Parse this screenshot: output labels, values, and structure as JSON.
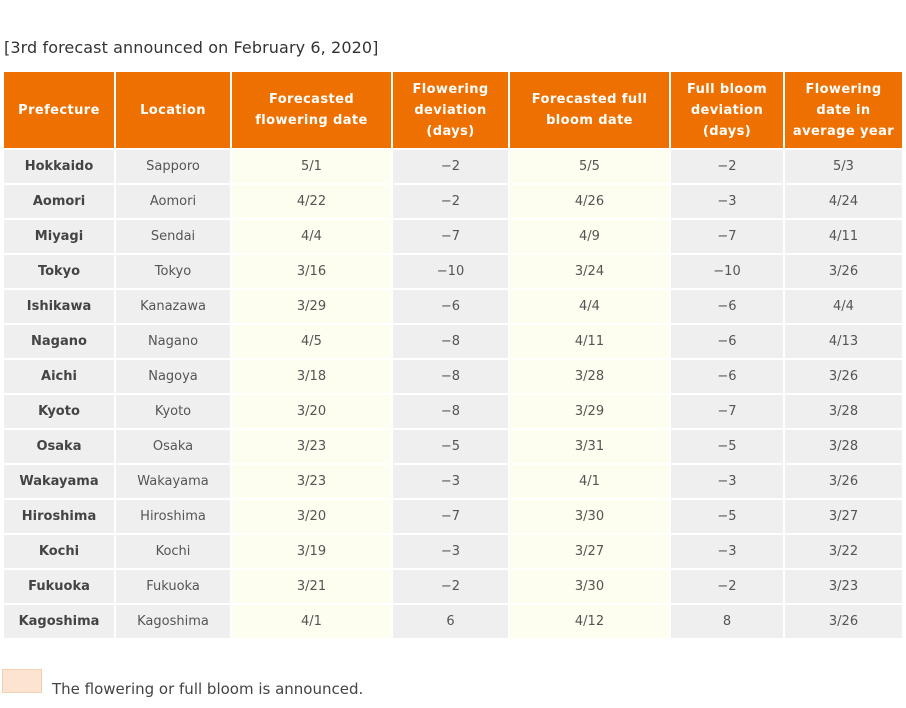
{
  "caption": "[3rd forecast announced on February 6, 2020]",
  "columns": [
    "Prefecture",
    "Location",
    "Forecasted flowering date",
    "Flowering deviation (days)",
    "Forecasted full bloom date",
    "Full bloom deviation (days)",
    "Flowering date in average year"
  ],
  "rows": [
    [
      "Hokkaido",
      "Sapporo",
      "5/1",
      "−2",
      "5/5",
      "−2",
      "5/3"
    ],
    [
      "Aomori",
      "Aomori",
      "4/22",
      "−2",
      "4/26",
      "−3",
      "4/24"
    ],
    [
      "Miyagi",
      "Sendai",
      "4/4",
      "−7",
      "4/9",
      "−7",
      "4/11"
    ],
    [
      "Tokyo",
      "Tokyo",
      "3/16",
      "−10",
      "3/24",
      "−10",
      "3/26"
    ],
    [
      "Ishikawa",
      "Kanazawa",
      "3/29",
      "−6",
      "4/4",
      "−6",
      "4/4"
    ],
    [
      "Nagano",
      "Nagano",
      "4/5",
      "−8",
      "4/11",
      "−6",
      "4/13"
    ],
    [
      "Aichi",
      "Nagoya",
      "3/18",
      "−8",
      "3/28",
      "−6",
      "3/26"
    ],
    [
      "Kyoto",
      "Kyoto",
      "3/20",
      "−8",
      "3/29",
      "−7",
      "3/28"
    ],
    [
      "Osaka",
      "Osaka",
      "3/23",
      "−5",
      "3/31",
      "−5",
      "3/28"
    ],
    [
      "Wakayama",
      "Wakayama",
      "3/23",
      "−3",
      "4/1",
      "−3",
      "3/26"
    ],
    [
      "Hiroshima",
      "Hiroshima",
      "3/20",
      "−7",
      "3/30",
      "−5",
      "3/27"
    ],
    [
      "Kochi",
      "Kochi",
      "3/19",
      "−3",
      "3/27",
      "−3",
      "3/22"
    ],
    [
      "Fukuoka",
      "Fukuoka",
      "3/21",
      "−2",
      "3/30",
      "−2",
      "3/23"
    ],
    [
      "Kagoshima",
      "Kagoshima",
      "4/1",
      "6",
      "4/12",
      "8",
      "3/26"
    ]
  ],
  "legend": {
    "text": "The flowering or full bloom is announced.",
    "color": "#fde4d0"
  },
  "colors": {
    "header": "#ee7100",
    "row": "#efefef",
    "forecast_column": "#fdfdf0"
  }
}
